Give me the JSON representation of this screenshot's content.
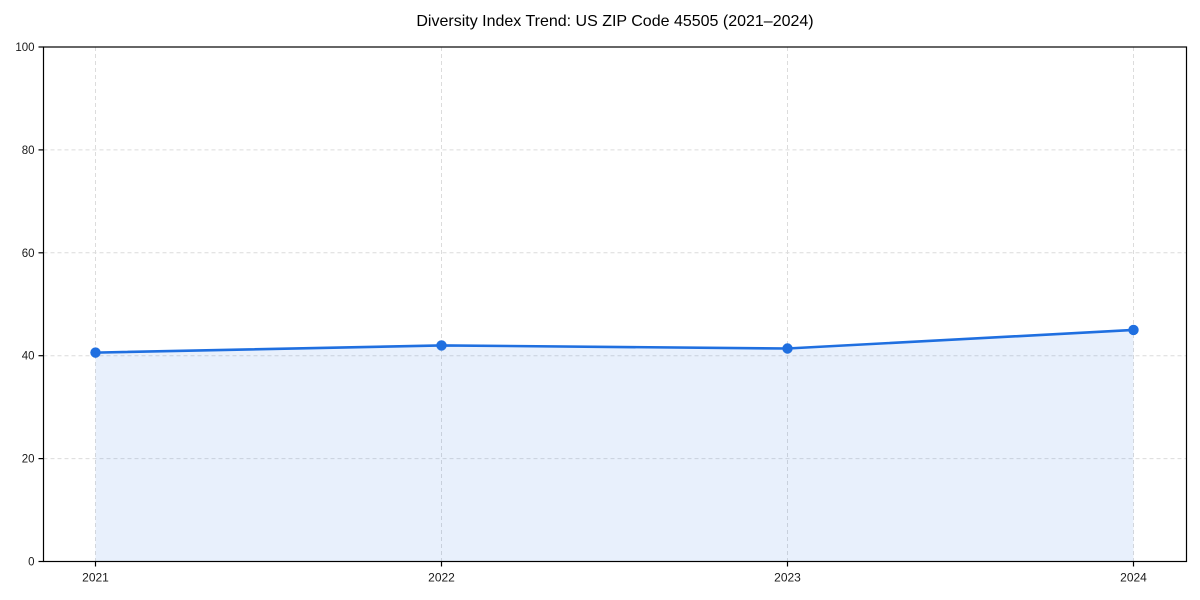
{
  "chart_data": {
    "type": "line",
    "title": "Diversity Index Trend: US ZIP Code 45505 (2021–2024)",
    "categories": [
      "2021",
      "2022",
      "2023",
      "2024"
    ],
    "values": [
      40.6,
      42.0,
      41.4,
      45.0
    ],
    "xlabel": "",
    "ylabel": "",
    "ylim": [
      0,
      100
    ],
    "yticks": [
      0,
      20,
      40,
      60,
      80,
      100
    ],
    "grid": true,
    "grid_style": "dashed",
    "legend": false,
    "area_fill": true,
    "marker": "circle",
    "colors": {
      "line": "#1f6fe0",
      "area_fill": "rgba(31, 111, 224, 0.10)",
      "grid": "#dcdcdc",
      "axis_box": "#000000",
      "tick_label": "#1a1a1a",
      "background": "#ffffff"
    }
  }
}
